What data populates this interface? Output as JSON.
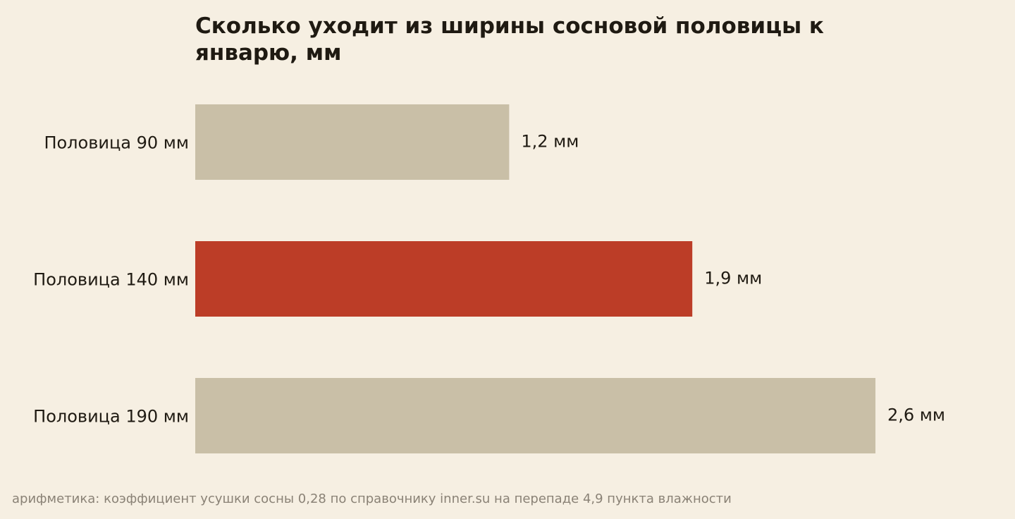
{
  "chart_data": {
    "type": "bar",
    "orientation": "horizontal",
    "title": "Сколько уходит из ширины сосновой половицы к январю, мм",
    "categories": [
      "Половица 90 мм",
      "Половица 140 мм",
      "Половица 190 мм"
    ],
    "values": [
      1.2,
      1.9,
      2.6
    ],
    "value_labels": [
      "1,2 мм",
      "1,9 мм",
      "2,6 мм"
    ],
    "highlight_index": 1,
    "xlabel": "",
    "ylabel": "",
    "xlim": [
      0,
      2.6
    ],
    "grid": false,
    "legend": "none",
    "colors": {
      "bar": "#c9bfa7",
      "highlight": "#bc3d27",
      "background": "#f6efe2",
      "text": "#1f1a12",
      "note": "#8a8276"
    },
    "note": "арифметика: коэффициент усушки сосны 0,28 по справочнику inner.su на перепаде 4,9 пункта влажности"
  }
}
